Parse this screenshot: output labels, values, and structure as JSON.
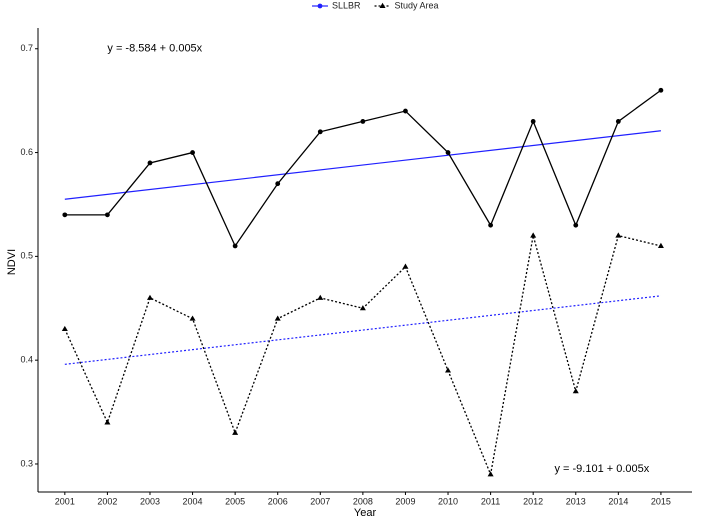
{
  "chart_data": {
    "type": "line",
    "x_label": "Year",
    "y_label": "NDVI",
    "x": [
      2001,
      2002,
      2003,
      2004,
      2005,
      2006,
      2007,
      2008,
      2009,
      2010,
      2011,
      2012,
      2013,
      2014,
      2015
    ],
    "xlim": [
      2000.37,
      2015.73
    ],
    "xticks": [
      2001,
      2002,
      2003,
      2004,
      2005,
      2006,
      2007,
      2008,
      2009,
      2010,
      2011,
      2012,
      2013,
      2014,
      2015
    ],
    "ylim": [
      0.273,
      0.72
    ],
    "yticks": [
      0.3,
      0.4,
      0.5,
      0.6,
      0.7
    ],
    "series": [
      {
        "name": "SLLBR",
        "color": "#000000",
        "legend_color": "#2020ff",
        "dash": "solid",
        "marker": "circle",
        "values": [
          0.54,
          0.54,
          0.59,
          0.6,
          0.51,
          0.57,
          0.62,
          0.63,
          0.64,
          0.6,
          0.53,
          0.63,
          0.53,
          0.63,
          0.66
        ],
        "trend_x": [
          2001,
          2015
        ],
        "trend": [
          0.555,
          0.621
        ],
        "trend_color": "#2020ff"
      },
      {
        "name": "Study Area",
        "color": "#000000",
        "legend_color": "#000000",
        "dash": "dotted",
        "marker": "triangle",
        "values": [
          0.43,
          0.34,
          0.46,
          0.44,
          0.33,
          0.44,
          0.46,
          0.45,
          0.49,
          0.39,
          0.29,
          0.52,
          0.37,
          0.52,
          0.51
        ],
        "trend_x": [
          2001,
          2015
        ],
        "trend": [
          0.396,
          0.462
        ],
        "trend_color": "#2020ff"
      }
    ],
    "annotations": [
      {
        "text": "y = -8.584 + 0.005x",
        "x": 2002.0,
        "y": 0.7
      },
      {
        "text": "y = -9.101 + 0.005x",
        "x": 2012.5,
        "y": 0.295
      }
    ]
  }
}
